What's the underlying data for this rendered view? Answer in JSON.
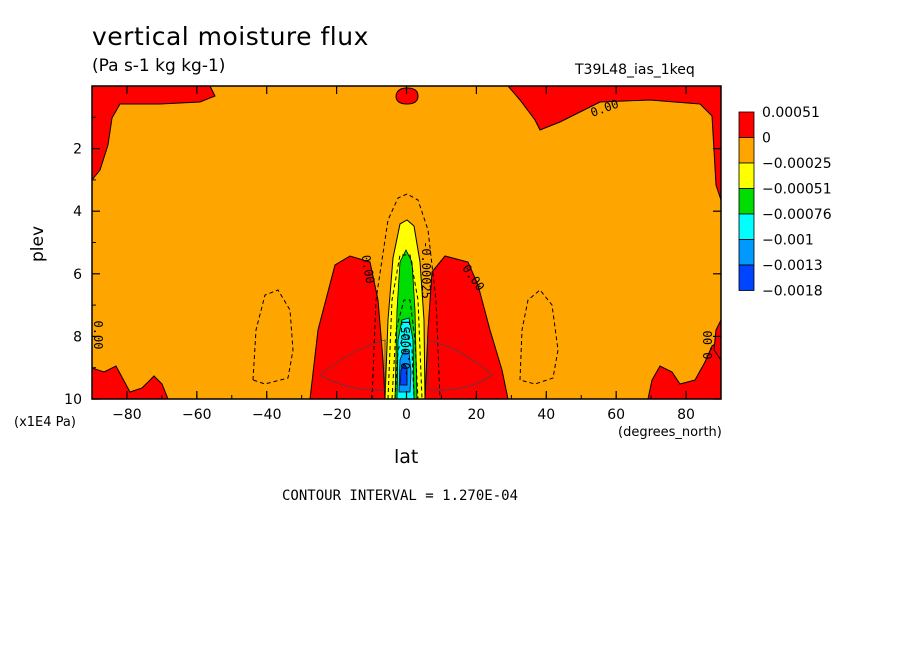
{
  "chart_data": {
    "type": "heatmap",
    "title": "vertical moisture flux",
    "subtitle": "(Pa s-1 kg kg-1)",
    "dataset_label": "T39L48_ias_1keq",
    "xlabel": "lat",
    "ylabel": "plev",
    "x_unit_label": "(degrees_north)",
    "y_unit_label": "(x1E4 Pa)",
    "xlim": [
      -90,
      90
    ],
    "ylim": [
      0,
      10
    ],
    "y_reversed": true,
    "x_ticks": [
      -80,
      -60,
      -40,
      -20,
      0,
      20,
      40,
      60,
      80
    ],
    "y_ticks": [
      2,
      4,
      6,
      8,
      10
    ],
    "colorbar": {
      "labels": [
        "0.00051",
        "0",
        "-0.00025",
        "-0.00051",
        "-0.00076",
        "-0.001",
        "-0.0013",
        "-0.0018"
      ],
      "colors": [
        "#ff0000",
        "#ffa500",
        "#ffff00",
        "#00dd00",
        "#00ffff",
        "#0099ff",
        "#0044ff"
      ]
    },
    "contour_labels": [
      "0.00",
      "0.00",
      "0.00",
      "0.00",
      "0.00",
      "-0.00025",
      "-0.00051"
    ],
    "contour_interval_text": "CONTOUR INTERVAL = 1.270E-04",
    "regions": [
      {
        "level": "0",
        "color": "#ffa500",
        "x_range": [
          -90,
          90
        ],
        "y_range": [
          0,
          10
        ]
      },
      {
        "level": "0.00051",
        "color": "#ff0000",
        "x_range": [
          -25,
          -5
        ],
        "y_range": [
          5.3,
          10
        ]
      },
      {
        "level": "0.00051",
        "color": "#ff0000",
        "x_range": [
          8,
          28
        ],
        "y_range": [
          5.2,
          10
        ]
      },
      {
        "level": "-0.00025",
        "color": "#ffff00",
        "x_range": [
          -5,
          5
        ],
        "y_range": [
          4.3,
          10
        ]
      },
      {
        "level": "-0.00051",
        "color": "#00dd00",
        "x_range": [
          -2.5,
          3
        ],
        "y_range": [
          5.5,
          10
        ]
      },
      {
        "level": "-0.001",
        "color": "#00ffff",
        "x_range": [
          -1.5,
          2.5
        ],
        "y_range": [
          7.5,
          10
        ]
      },
      {
        "level": "-0.0018",
        "color": "#0044ff",
        "x_range": [
          -1,
          2
        ],
        "y_range": [
          8.5,
          10
        ]
      }
    ]
  }
}
